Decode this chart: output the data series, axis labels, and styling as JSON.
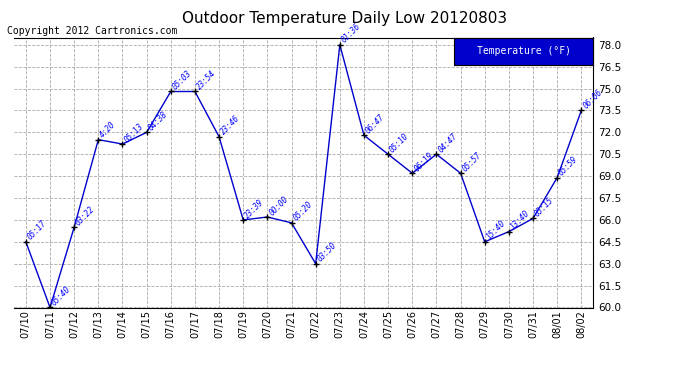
{
  "title": "Outdoor Temperature Daily Low 20120803",
  "copyright": "Copyright 2012 Cartronics.com",
  "legend_label": "Temperature (°F)",
  "dates": [
    "07/10",
    "07/11",
    "07/12",
    "07/13",
    "07/14",
    "07/15",
    "07/16",
    "07/17",
    "07/18",
    "07/19",
    "07/20",
    "07/21",
    "07/22",
    "07/23",
    "07/24",
    "07/25",
    "07/26",
    "07/27",
    "07/28",
    "07/29",
    "07/30",
    "07/31",
    "08/01",
    "08/02"
  ],
  "values": [
    64.5,
    60.0,
    65.5,
    71.5,
    71.2,
    72.0,
    74.8,
    74.8,
    71.7,
    66.0,
    66.2,
    65.8,
    63.0,
    78.0,
    71.8,
    70.5,
    69.2,
    70.5,
    69.2,
    64.5,
    65.2,
    66.1,
    68.9,
    73.5
  ],
  "times": [
    "05:17",
    "05:40",
    "03:22",
    "4:20",
    "05:13",
    "04:38",
    "05:03",
    "23:54",
    "23:46",
    "23:39",
    "00:00",
    "05:20",
    "03:50",
    "01:36",
    "06:47",
    "05:10",
    "06:19",
    "04:47",
    "05:57",
    "15:40",
    "13:40",
    "05:15",
    "05:59",
    "06:06"
  ],
  "line_color": "#0000cc",
  "marker_color": "#000000",
  "bg_color": "#ffffff",
  "grid_color": "#aaaaaa",
  "title_color": "#000000",
  "ylim_min": 60.0,
  "ylim_max": 78.5,
  "yticks": [
    60.0,
    61.5,
    63.0,
    64.5,
    66.0,
    67.5,
    69.0,
    70.5,
    72.0,
    73.5,
    75.0,
    76.5,
    78.0
  ]
}
